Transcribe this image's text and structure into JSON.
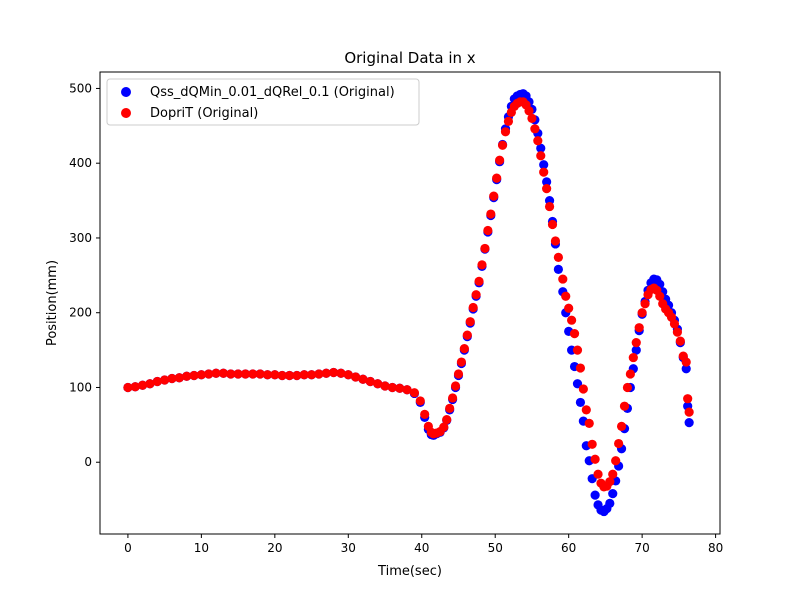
{
  "chart_data": {
    "type": "scatter",
    "title": "Original Data in x",
    "xlabel": "Time(sec)",
    "ylabel": "Position(mm)",
    "xlim": [
      -3.8,
      80.6
    ],
    "ylim": [
      -96,
      522
    ],
    "xticks": [
      0,
      10,
      20,
      30,
      40,
      50,
      60,
      70,
      80
    ],
    "yticks": [
      0,
      100,
      200,
      300,
      400,
      500
    ],
    "grid": false,
    "legend_position": "top-left",
    "series": [
      {
        "name": "Qss_dQMin_0.01_dQRel_0.1 (Original)",
        "color": "#0000ff",
        "points": [
          [
            0,
            100
          ],
          [
            1,
            101
          ],
          [
            2,
            103
          ],
          [
            3,
            105
          ],
          [
            4,
            108
          ],
          [
            5,
            110
          ],
          [
            6,
            112
          ],
          [
            7,
            113
          ],
          [
            8,
            115
          ],
          [
            9,
            116
          ],
          [
            10,
            117
          ],
          [
            11,
            118
          ],
          [
            12,
            119
          ],
          [
            13,
            119
          ],
          [
            14,
            118
          ],
          [
            15,
            118
          ],
          [
            16,
            118
          ],
          [
            17,
            118
          ],
          [
            18,
            118
          ],
          [
            19,
            117
          ],
          [
            20,
            117
          ],
          [
            21,
            116
          ],
          [
            22,
            116
          ],
          [
            23,
            116
          ],
          [
            24,
            117
          ],
          [
            25,
            117
          ],
          [
            26,
            118
          ],
          [
            27,
            119
          ],
          [
            28,
            120
          ],
          [
            29,
            119
          ],
          [
            30,
            117
          ],
          [
            31,
            114
          ],
          [
            32,
            111
          ],
          [
            33,
            108
          ],
          [
            34,
            105
          ],
          [
            35,
            102
          ],
          [
            36,
            100
          ],
          [
            37,
            99
          ],
          [
            38,
            97
          ],
          [
            39,
            92
          ],
          [
            39.8,
            80
          ],
          [
            40.4,
            60
          ],
          [
            40.9,
            44
          ],
          [
            41.3,
            37
          ],
          [
            41.6,
            36
          ],
          [
            42,
            38
          ],
          [
            42.5,
            40
          ],
          [
            43,
            46
          ],
          [
            43.4,
            56
          ],
          [
            43.8,
            70
          ],
          [
            44.2,
            84
          ],
          [
            44.6,
            100
          ],
          [
            45,
            116
          ],
          [
            45.4,
            132
          ],
          [
            45.8,
            150
          ],
          [
            46.2,
            168
          ],
          [
            46.6,
            186
          ],
          [
            47,
            205
          ],
          [
            47.4,
            222
          ],
          [
            47.8,
            240
          ],
          [
            48.2,
            262
          ],
          [
            48.6,
            285
          ],
          [
            49,
            308
          ],
          [
            49.4,
            330
          ],
          [
            49.8,
            354
          ],
          [
            50.2,
            378
          ],
          [
            50.6,
            402
          ],
          [
            51,
            425
          ],
          [
            51.4,
            446
          ],
          [
            51.8,
            462
          ],
          [
            52.2,
            476
          ],
          [
            52.6,
            486
          ],
          [
            53,
            490
          ],
          [
            53.4,
            492
          ],
          [
            53.8,
            493
          ],
          [
            54.2,
            490
          ],
          [
            54.6,
            482
          ],
          [
            55,
            472
          ],
          [
            55.4,
            458
          ],
          [
            55.8,
            440
          ],
          [
            56.2,
            420
          ],
          [
            56.6,
            398
          ],
          [
            57,
            375
          ],
          [
            57.4,
            350
          ],
          [
            57.8,
            322
          ],
          [
            58.2,
            292
          ],
          [
            58.6,
            258
          ],
          [
            59.2,
            228
          ],
          [
            59.6,
            200
          ],
          [
            60,
            175
          ],
          [
            60.4,
            150
          ],
          [
            60.8,
            128
          ],
          [
            61.2,
            105
          ],
          [
            61.6,
            80
          ],
          [
            62,
            55
          ],
          [
            62.4,
            22
          ],
          [
            62.8,
            2
          ],
          [
            63.2,
            -22
          ],
          [
            63.6,
            -44
          ],
          [
            64,
            -57
          ],
          [
            64.4,
            -64
          ],
          [
            64.8,
            -66
          ],
          [
            65.2,
            -62
          ],
          [
            65.6,
            -55
          ],
          [
            66,
            -42
          ],
          [
            66.4,
            -25
          ],
          [
            66.8,
            -5
          ],
          [
            67.2,
            18
          ],
          [
            67.6,
            45
          ],
          [
            68,
            72
          ],
          [
            68.4,
            100
          ],
          [
            68.8,
            125
          ],
          [
            69.2,
            150
          ],
          [
            69.6,
            176
          ],
          [
            70,
            198
          ],
          [
            70.4,
            215
          ],
          [
            70.8,
            230
          ],
          [
            71.2,
            240
          ],
          [
            71.6,
            245
          ],
          [
            72,
            244
          ],
          [
            72.4,
            238
          ],
          [
            72.8,
            228
          ],
          [
            73.2,
            218
          ],
          [
            73.6,
            210
          ],
          [
            74,
            200
          ],
          [
            74.4,
            190
          ],
          [
            74.8,
            178
          ],
          [
            75.2,
            160
          ],
          [
            75.6,
            140
          ],
          [
            76,
            125
          ],
          [
            76.2,
            75
          ],
          [
            76.4,
            53
          ]
        ]
      },
      {
        "name": "DopriT (Original)",
        "color": "#ff0000",
        "points": [
          [
            0,
            100
          ],
          [
            1,
            101
          ],
          [
            2,
            103
          ],
          [
            3,
            105
          ],
          [
            4,
            108
          ],
          [
            5,
            110
          ],
          [
            6,
            112
          ],
          [
            7,
            113
          ],
          [
            8,
            115
          ],
          [
            9,
            116
          ],
          [
            10,
            117
          ],
          [
            11,
            118
          ],
          [
            12,
            119
          ],
          [
            13,
            119
          ],
          [
            14,
            118
          ],
          [
            15,
            118
          ],
          [
            16,
            118
          ],
          [
            17,
            118
          ],
          [
            18,
            118
          ],
          [
            19,
            117
          ],
          [
            20,
            117
          ],
          [
            21,
            116
          ],
          [
            22,
            116
          ],
          [
            23,
            116
          ],
          [
            24,
            117
          ],
          [
            25,
            117
          ],
          [
            26,
            118
          ],
          [
            27,
            119
          ],
          [
            28,
            120
          ],
          [
            29,
            119
          ],
          [
            30,
            117
          ],
          [
            31,
            114
          ],
          [
            32,
            111
          ],
          [
            33,
            108
          ],
          [
            34,
            105
          ],
          [
            35,
            102
          ],
          [
            36,
            100
          ],
          [
            37,
            99
          ],
          [
            38,
            97
          ],
          [
            39,
            93
          ],
          [
            39.8,
            82
          ],
          [
            40.4,
            64
          ],
          [
            40.9,
            48
          ],
          [
            41.3,
            40
          ],
          [
            41.6,
            38
          ],
          [
            42,
            39
          ],
          [
            42.5,
            41
          ],
          [
            43,
            47
          ],
          [
            43.4,
            57
          ],
          [
            43.8,
            72
          ],
          [
            44.2,
            86
          ],
          [
            44.6,
            102
          ],
          [
            45,
            118
          ],
          [
            45.4,
            134
          ],
          [
            45.8,
            152
          ],
          [
            46.2,
            170
          ],
          [
            46.6,
            188
          ],
          [
            47,
            207
          ],
          [
            47.4,
            224
          ],
          [
            47.8,
            242
          ],
          [
            48.2,
            264
          ],
          [
            48.6,
            286
          ],
          [
            49,
            310
          ],
          [
            49.4,
            332
          ],
          [
            49.8,
            356
          ],
          [
            50.2,
            380
          ],
          [
            50.6,
            404
          ],
          [
            51,
            424
          ],
          [
            51.4,
            442
          ],
          [
            51.8,
            456
          ],
          [
            52.2,
            468
          ],
          [
            52.6,
            476
          ],
          [
            53,
            480
          ],
          [
            53.4,
            482
          ],
          [
            53.8,
            482
          ],
          [
            54.2,
            478
          ],
          [
            54.6,
            470
          ],
          [
            55,
            460
          ],
          [
            55.4,
            446
          ],
          [
            55.8,
            430
          ],
          [
            56.2,
            410
          ],
          [
            56.6,
            388
          ],
          [
            57,
            366
          ],
          [
            57.4,
            342
          ],
          [
            57.8,
            318
          ],
          [
            58.2,
            296
          ],
          [
            58.6,
            274
          ],
          [
            59.2,
            245
          ],
          [
            59.6,
            222
          ],
          [
            60,
            206
          ],
          [
            60.4,
            190
          ],
          [
            60.8,
            172
          ],
          [
            61.2,
            150
          ],
          [
            61.6,
            126
          ],
          [
            62,
            98
          ],
          [
            62.4,
            70
          ],
          [
            62.8,
            52
          ],
          [
            63.2,
            24
          ],
          [
            63.6,
            4
          ],
          [
            64,
            -16
          ],
          [
            64.4,
            -28
          ],
          [
            64.8,
            -33
          ],
          [
            65.2,
            -32
          ],
          [
            65.6,
            -26
          ],
          [
            66,
            -16
          ],
          [
            66.4,
            2
          ],
          [
            66.8,
            25
          ],
          [
            67.2,
            48
          ],
          [
            67.6,
            75
          ],
          [
            68,
            100
          ],
          [
            68.4,
            118
          ],
          [
            68.8,
            140
          ],
          [
            69.2,
            160
          ],
          [
            69.6,
            180
          ],
          [
            70,
            200
          ],
          [
            70.4,
            212
          ],
          [
            70.8,
            224
          ],
          [
            71.2,
            231
          ],
          [
            71.6,
            233
          ],
          [
            72,
            230
          ],
          [
            72.4,
            222
          ],
          [
            72.8,
            212
          ],
          [
            73.2,
            205
          ],
          [
            73.6,
            200
          ],
          [
            74,
            194
          ],
          [
            74.4,
            185
          ],
          [
            74.8,
            174
          ],
          [
            75.2,
            162
          ],
          [
            75.6,
            142
          ],
          [
            76,
            134
          ],
          [
            76.2,
            85
          ],
          [
            76.4,
            67
          ]
        ]
      }
    ]
  }
}
